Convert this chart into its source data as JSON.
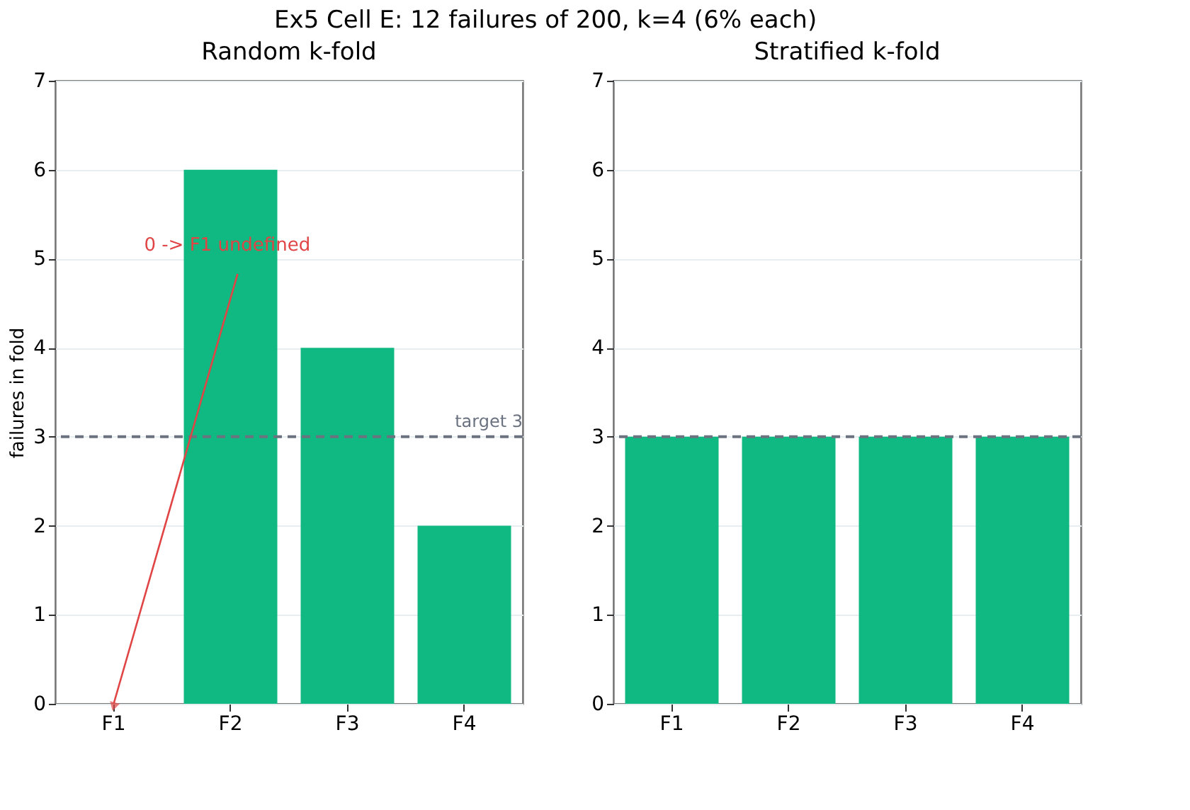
{
  "chart_data": [
    {
      "type": "bar",
      "title": "Ex5 Cell E: 12 failures of 200, k=4 (6% each)",
      "subtitle": "Random k-fold",
      "ylabel": "failures in fold",
      "categories": [
        "F1",
        "F2",
        "F3",
        "F4"
      ],
      "values": [
        0,
        6,
        4,
        2
      ],
      "color": "#10b981",
      "ylim": [
        0,
        7
      ],
      "yticks": [
        0,
        1,
        2,
        3,
        4,
        5,
        6,
        7
      ],
      "grid": "y",
      "ref_lines": [
        {
          "axis": "y",
          "value": 3,
          "label": "target 3",
          "color": "#6b7280",
          "line_style": "dashed"
        }
      ],
      "annotations": [
        {
          "text": "0 -> F1 undefined",
          "x": "F1",
          "y": 0
        }
      ]
    },
    {
      "type": "bar",
      "title": "Stratified k-fold",
      "categories": [
        "F1",
        "F2",
        "F3",
        "F4"
      ],
      "values": [
        3,
        3,
        3,
        3
      ],
      "color": "#10b981",
      "ylim": [
        0,
        7
      ],
      "yticks": [
        0,
        1,
        2,
        3,
        4,
        5,
        6,
        7
      ],
      "grid": "y",
      "ref_lines": [
        {
          "axis": "y",
          "value": 3,
          "label": null,
          "color": "#6b7280",
          "line_style": "dashed"
        }
      ]
    }
  ]
}
